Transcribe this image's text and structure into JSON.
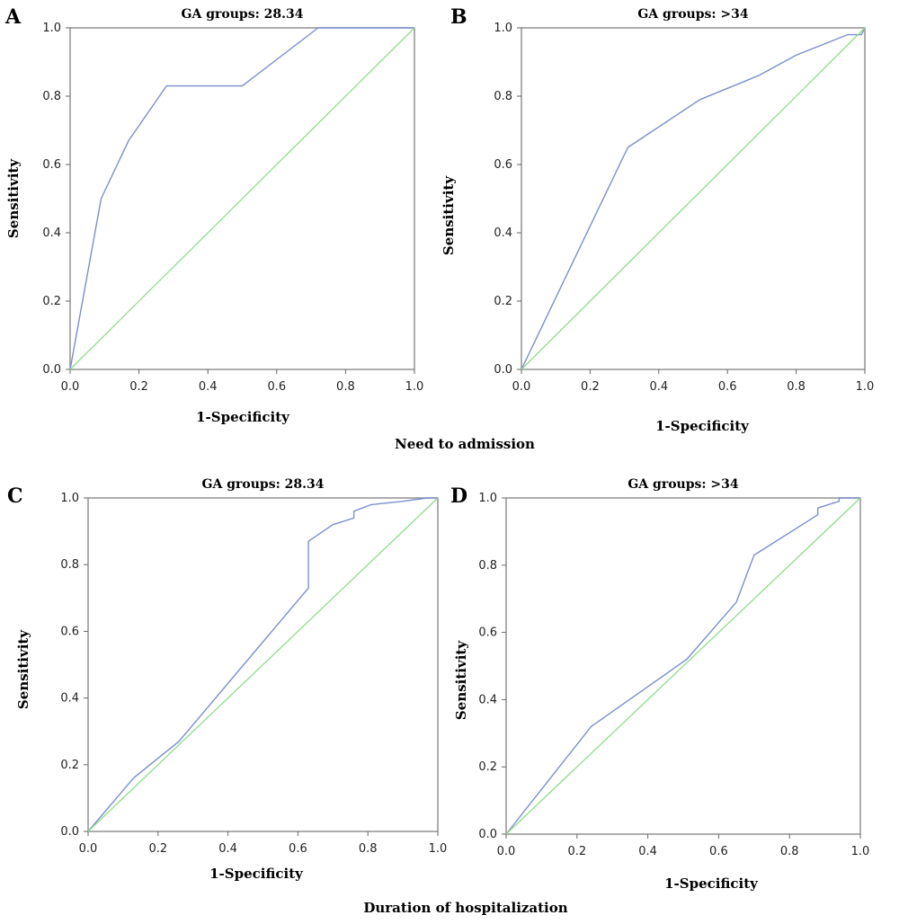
{
  "captions": {
    "top": "Need to admission",
    "bottom": "Duration of hospitalization"
  },
  "colors": {
    "roc": "#7b8fcc",
    "reference": "#8fdc8a",
    "frame": "#8a8a8a"
  },
  "chart_data": [
    {
      "panel": "A",
      "type": "line",
      "title": "GA groups: 28.34",
      "xlabel": "1-Specificity",
      "ylabel": "Sensitivity",
      "xlim": [
        0,
        1
      ],
      "ylim": [
        0,
        1
      ],
      "ticks": [
        "0.0",
        "0.2",
        "0.4",
        "0.6",
        "0.8",
        "1.0"
      ],
      "grid": false,
      "series": [
        {
          "role": "roc",
          "x": [
            0,
            0.09,
            0.17,
            0.28,
            0.5,
            0.72,
            1.0
          ],
          "y": [
            0,
            0.5,
            0.67,
            0.83,
            0.83,
            1.0,
            1.0
          ]
        },
        {
          "role": "reference",
          "x": [
            0,
            1
          ],
          "y": [
            0,
            1
          ]
        }
      ]
    },
    {
      "panel": "B",
      "type": "line",
      "title": "GA groups: >34",
      "xlabel": "1-Specificity",
      "ylabel": "Sensitivity",
      "xlim": [
        0,
        1
      ],
      "ylim": [
        0,
        1
      ],
      "ticks": [
        "0.0",
        "0.2",
        "0.4",
        "0.6",
        "0.8",
        "1.0"
      ],
      "grid": false,
      "series": [
        {
          "role": "roc",
          "x": [
            0,
            0.31,
            0.52,
            0.69,
            0.8,
            0.95,
            0.99,
            1.0
          ],
          "y": [
            0,
            0.65,
            0.79,
            0.86,
            0.92,
            0.98,
            0.98,
            1.0
          ]
        },
        {
          "role": "reference",
          "x": [
            0,
            1
          ],
          "y": [
            0,
            1
          ]
        }
      ]
    },
    {
      "panel": "C",
      "type": "line",
      "title": "GA groups: 28.34",
      "xlabel": "1-Specificity",
      "ylabel": "Sensitivity",
      "xlim": [
        0,
        1
      ],
      "ylim": [
        0,
        1
      ],
      "ticks": [
        "0.0",
        "0.2",
        "0.4",
        "0.6",
        "0.8",
        "1.0"
      ],
      "grid": false,
      "series": [
        {
          "role": "roc",
          "x": [
            0,
            0.13,
            0.26,
            0.63,
            0.63,
            0.7,
            0.76,
            0.76,
            0.81,
            0.9,
            0.97,
            1.0
          ],
          "y": [
            0,
            0.16,
            0.27,
            0.73,
            0.87,
            0.92,
            0.94,
            0.96,
            0.98,
            0.99,
            1.0,
            1.0
          ]
        },
        {
          "role": "reference",
          "x": [
            0,
            1
          ],
          "y": [
            0,
            1
          ]
        }
      ]
    },
    {
      "panel": "D",
      "type": "line",
      "title": "GA groups: >34",
      "xlabel": "1-Specificity",
      "ylabel": "Sensitivity",
      "xlim": [
        0,
        1
      ],
      "ylim": [
        0,
        1
      ],
      "ticks": [
        "0.0",
        "0.2",
        "0.4",
        "0.6",
        "0.8",
        "1.0"
      ],
      "grid": false,
      "series": [
        {
          "role": "roc",
          "x": [
            0,
            0.24,
            0.51,
            0.65,
            0.7,
            0.88,
            0.88,
            0.94,
            0.94,
            1.0
          ],
          "y": [
            0,
            0.32,
            0.52,
            0.69,
            0.83,
            0.95,
            0.97,
            0.99,
            1.0,
            1.0
          ]
        },
        {
          "role": "reference",
          "x": [
            0,
            1
          ],
          "y": [
            0,
            1
          ]
        }
      ]
    }
  ]
}
